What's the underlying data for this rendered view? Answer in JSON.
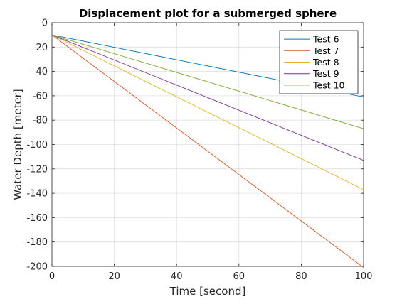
{
  "chart_data": {
    "type": "line",
    "title": "Displacement plot for a submerged sphere",
    "xlabel": "Time [second]",
    "ylabel": "Water Depth [meter]",
    "xlim": [
      0,
      100
    ],
    "ylim": [
      -200,
      0
    ],
    "xticks": [
      0,
      20,
      40,
      60,
      80,
      100
    ],
    "yticks": [
      0,
      -20,
      -40,
      -60,
      -80,
      -100,
      -120,
      -140,
      -160,
      -180,
      -200
    ],
    "grid": true,
    "legend_position": "top-right",
    "x": [
      0,
      100
    ],
    "series": [
      {
        "name": "Test 6",
        "color": "#0072BD",
        "values": [
          -10,
          -61
        ]
      },
      {
        "name": "Test 7",
        "color": "#D95319",
        "values": [
          -10,
          -201
        ]
      },
      {
        "name": "Test 8",
        "color": "#EDB120",
        "values": [
          -10,
          -137
        ]
      },
      {
        "name": "Test 9",
        "color": "#7E2F8E",
        "values": [
          -10,
          -113
        ]
      },
      {
        "name": "Test 10",
        "color": "#77AC30",
        "values": [
          -10,
          -87
        ]
      }
    ]
  }
}
